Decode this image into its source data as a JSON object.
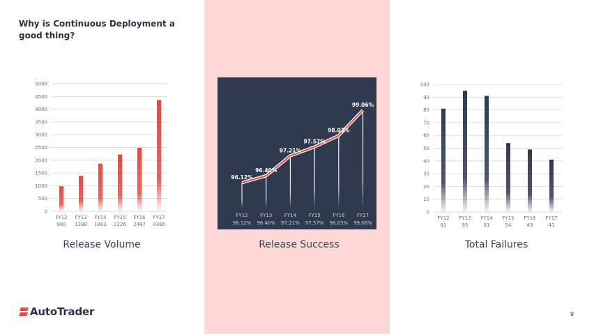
{
  "title": "Why is Continuous Deployment a good thing?",
  "page_number": "9",
  "logo_text": "AutoTrader",
  "colors": {
    "accent": "#f0463c",
    "navy": "#2f3a4f",
    "panel": "#fdd8d5"
  },
  "chart_data": [
    {
      "type": "bar",
      "caption": "Release Volume",
      "categories": [
        "FY12",
        "FY13",
        "FY14",
        "FY15",
        "FY16",
        "FY17"
      ],
      "values": [
        980,
        1388,
        1863,
        2226,
        2487,
        4366
      ],
      "value_labels": [
        "980",
        "1388",
        "1863",
        "2226",
        "2487",
        "4366"
      ],
      "ylim": [
        0,
        5000
      ],
      "yticks": [
        0,
        500,
        1000,
        1500,
        2000,
        2500,
        3000,
        3500,
        4000,
        4500,
        5000
      ],
      "grid": true,
      "color": "#f0463c"
    },
    {
      "type": "line",
      "caption": "Release Success",
      "categories": [
        "FY12",
        "FY13",
        "FY14",
        "FY15",
        "FY16",
        "FY17"
      ],
      "values": [
        96.12,
        96.4,
        97.21,
        97.57,
        98.03,
        99.06
      ],
      "value_labels": [
        "96.12%",
        "96.40%",
        "97.21%",
        "97.57%",
        "98.03%",
        "99.06%"
      ],
      "grid": false,
      "background": "#2f3a4f"
    },
    {
      "type": "bar",
      "caption": "Total Failures",
      "categories": [
        "FY12",
        "FY13",
        "FY14",
        "FY15",
        "FY16",
        "FY17"
      ],
      "values": [
        81,
        95,
        91,
        54,
        49,
        41
      ],
      "value_labels": [
        "81",
        "95",
        "91",
        "54",
        "49",
        "41"
      ],
      "ylim": [
        0,
        100
      ],
      "yticks": [
        0,
        10,
        20,
        30,
        40,
        50,
        60,
        70,
        80,
        90,
        100
      ],
      "grid": true,
      "color": "#2f3a4f"
    }
  ]
}
